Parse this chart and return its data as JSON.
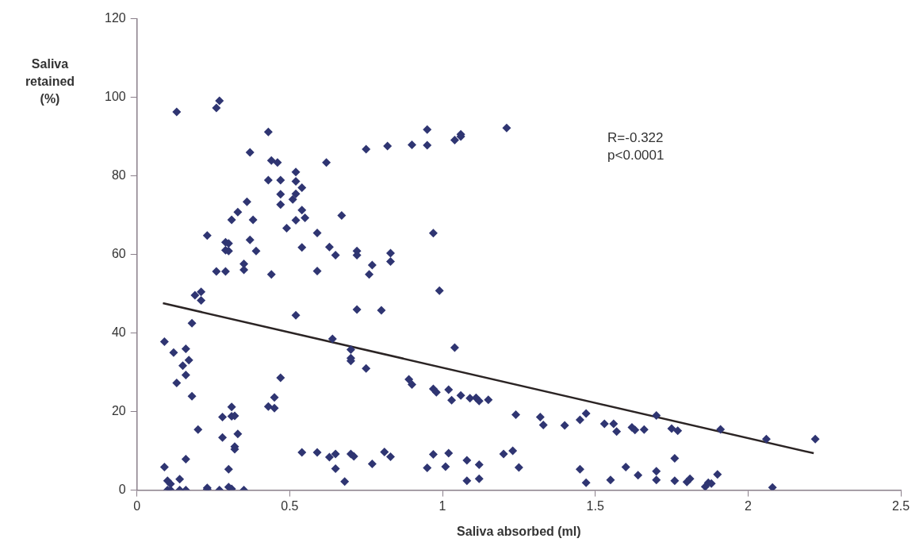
{
  "chart_data": {
    "type": "scatter",
    "xlabel": "Saliva absorbed (ml)",
    "ylabel": "Saliva retained (%)",
    "annotations": [
      "R=-0.322",
      "p<0.0001"
    ],
    "xlim": [
      0,
      2.5
    ],
    "xticks": [
      0,
      0.5,
      1,
      1.5,
      2,
      2.5
    ],
    "ylim": [
      0,
      120
    ],
    "yticks": [
      0,
      20,
      40,
      60,
      80,
      100,
      120
    ],
    "grid": false,
    "legend": false,
    "marker": "diamond",
    "series": [
      {
        "type": "scatter",
        "color": "#2f3572",
        "x": [
          0.13,
          0.27,
          0.26,
          0.43,
          0.37,
          0.44,
          0.46,
          0.62,
          0.75,
          0.82,
          0.52,
          0.43,
          0.47,
          0.52,
          0.54,
          0.47,
          0.52,
          0.51,
          0.47,
          0.54,
          0.55,
          0.52,
          0.36,
          0.33,
          0.31,
          0.38,
          0.67,
          0.49,
          0.23,
          0.59,
          0.29,
          0.3,
          0.29,
          0.3,
          0.37,
          0.39,
          0.54,
          0.63,
          0.65,
          0.72,
          0.72,
          0.83,
          0.83,
          0.77,
          0.76,
          0.26,
          0.29,
          0.35,
          0.35,
          0.44,
          0.59,
          0.95,
          1.21,
          0.9,
          0.95,
          1.04,
          1.06,
          1.06,
          0.97,
          0.21,
          0.19,
          0.21,
          0.18,
          0.52,
          0.72,
          0.8,
          0.09,
          0.12,
          0.16,
          0.15,
          0.17,
          0.16,
          0.13,
          0.18,
          0.2,
          0.64,
          0.7,
          0.7,
          0.7,
          0.75,
          0.47,
          0.45,
          0.43,
          0.45,
          0.31,
          0.28,
          0.31,
          0.32,
          0.28,
          0.33,
          0.32,
          0.32,
          0.3,
          0.09,
          0.16,
          0.14,
          0.1,
          0.11,
          0.1,
          0.11,
          0.14,
          0.16,
          0.23,
          0.23,
          0.27,
          0.3,
          0.31,
          0.35,
          0.54,
          0.59,
          0.63,
          0.65,
          0.7,
          0.71,
          0.77,
          0.81,
          0.83,
          0.65,
          0.68,
          0.99,
          1.04,
          0.89,
          0.9,
          0.97,
          0.98,
          1.02,
          1.03,
          1.06,
          1.09,
          1.11,
          1.12,
          1.15,
          1.24,
          1.32,
          1.33,
          1.4,
          1.45,
          1.47,
          1.53,
          1.56,
          1.57,
          1.62,
          1.63,
          1.66,
          0.97,
          1.02,
          0.95,
          1.01,
          1.08,
          1.12,
          1.08,
          1.12,
          1.2,
          1.23,
          1.25,
          1.45,
          1.47,
          1.55,
          1.6,
          1.64,
          1.7,
          1.75,
          1.77,
          1.91,
          2.06,
          2.22,
          1.76,
          1.7,
          1.7,
          1.76,
          1.8,
          1.81,
          1.86,
          1.87,
          1.88,
          1.9,
          2.08
        ],
        "values": [
          96.3,
          99.1,
          97.3,
          91.2,
          86.0,
          83.9,
          83.4,
          83.4,
          86.8,
          87.6,
          81.0,
          78.9,
          78.9,
          78.6,
          77.0,
          75.3,
          75.4,
          74.0,
          72.7,
          71.3,
          69.3,
          68.7,
          73.4,
          70.8,
          68.8,
          68.8,
          69.9,
          66.7,
          64.8,
          65.5,
          63.1,
          62.8,
          61.1,
          60.9,
          63.7,
          60.9,
          61.8,
          61.9,
          59.8,
          60.9,
          59.8,
          60.3,
          58.2,
          57.3,
          54.9,
          55.7,
          55.7,
          57.6,
          56.1,
          54.9,
          55.8,
          91.8,
          92.2,
          87.9,
          87.8,
          89.1,
          90.6,
          90.0,
          65.4,
          50.5,
          49.6,
          48.3,
          42.5,
          44.5,
          46.0,
          45.8,
          37.8,
          35.0,
          36.0,
          31.7,
          33.1,
          29.3,
          27.3,
          23.9,
          15.4,
          38.5,
          35.8,
          33.6,
          32.9,
          31.0,
          28.6,
          23.6,
          21.3,
          20.9,
          21.2,
          18.6,
          18.8,
          18.9,
          13.4,
          14.3,
          11.1,
          10.4,
          5.3,
          5.9,
          7.9,
          2.8,
          2.4,
          1.6,
          0,
          0,
          0,
          0,
          0.6,
          0.2,
          0,
          0.8,
          0.3,
          0,
          9.6,
          9.6,
          8.4,
          9.2,
          9.2,
          8.6,
          6.7,
          9.7,
          8.5,
          5.5,
          2.2,
          50.8,
          36.3,
          28.2,
          26.9,
          25.8,
          24.9,
          25.6,
          22.9,
          24.1,
          23.4,
          23.5,
          22.7,
          23.0,
          19.2,
          18.6,
          16.6,
          16.5,
          17.9,
          19.5,
          16.9,
          16.9,
          14.9,
          16.0,
          15.3,
          15.4,
          9.1,
          9.4,
          5.7,
          6.0,
          7.6,
          6.5,
          2.4,
          2.9,
          9.2,
          10.0,
          5.8,
          5.3,
          1.9,
          2.6,
          5.9,
          3.8,
          19.0,
          15.7,
          15.1,
          15.5,
          13.0,
          13.0,
          8.1,
          4.8,
          2.6,
          2.4,
          2.1,
          2.9,
          0.9,
          1.9,
          1.7,
          4.0,
          0.7
        ]
      },
      {
        "type": "line",
        "color": "#2b2424",
        "marker": "none",
        "x": [
          0.085,
          2.215
        ],
        "values": [
          47.6,
          9.4
        ]
      }
    ]
  }
}
